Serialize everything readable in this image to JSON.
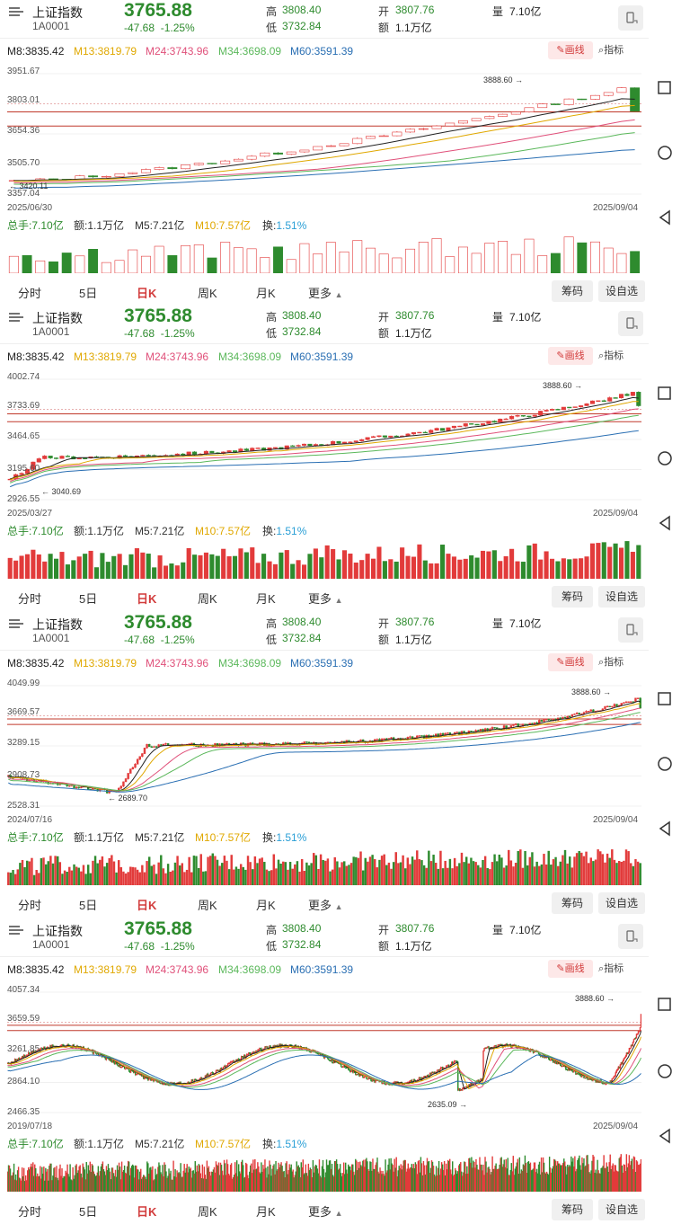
{
  "header": {
    "name": "上证指数",
    "code": "1A0001",
    "price": "3765.88",
    "change": "-47.68",
    "change_pct": "-1.25%",
    "high_label": "高",
    "high": "3808.40",
    "low_label": "低",
    "low": "3732.84",
    "open_label": "开",
    "open": "3807.76",
    "amount_label": "额",
    "amount": "1.1万亿",
    "volume_label": "量",
    "volume": "7.10亿"
  },
  "ma": {
    "m8": "M8:3835.42",
    "m13": "M13:3819.79",
    "m24": "M24:3743.96",
    "m34": "M34:3698.09",
    "m60": "M60:3591.39"
  },
  "tools": {
    "draw": "画线",
    "indicator": "指标"
  },
  "volinfo": {
    "total": "总手:7.10亿",
    "amount": "额:1.1万亿",
    "m5": "M5:7.21亿",
    "m10": "M10:7.57亿",
    "turnover_label": "换:",
    "turnover": "1.51%"
  },
  "tabs": [
    "分时",
    "5日",
    "日K",
    "周K",
    "月K",
    "更多"
  ],
  "buttons": {
    "chips": "筹码",
    "watchlist": "设自选"
  },
  "colors": {
    "up": "#e23b3b",
    "down": "#2e8b2e",
    "m8": "#222222",
    "m13": "#e0a800",
    "m24": "#e0507a",
    "m34": "#5bb85b",
    "m60": "#2a6fb3"
  },
  "panels": [
    {
      "ylabels": [
        "3951.67",
        "3803.01",
        "3654.36",
        "3505.70",
        "3357.04"
      ],
      "start_date": "2025/06/30",
      "end_date": "2025/09/04",
      "high_marker": "3888.60",
      "low_marker": "3420.11",
      "candles": 48,
      "trend": [
        3410,
        3420,
        3430,
        3440,
        3450,
        3455,
        3460,
        3470,
        3480,
        3490,
        3495,
        3500,
        3505,
        3510,
        3515,
        3520,
        3525,
        3530,
        3540,
        3550,
        3560,
        3580,
        3600,
        3620,
        3630,
        3640,
        3650,
        3660,
        3670,
        3680,
        3690,
        3700,
        3710,
        3720,
        3730,
        3740,
        3760,
        3780,
        3800,
        3830,
        3860,
        3880,
        3870,
        3860,
        3880,
        3870,
        3840,
        3770
      ]
    },
    {
      "ylabels": [
        "4002.74",
        "3733.69",
        "3464.65",
        "3195.60",
        "2926.55"
      ],
      "start_date": "2025/03/27",
      "end_date": "2025/09/04",
      "high_marker": "3888.60",
      "low_marker": "3040.69",
      "candles": 110
    },
    {
      "ylabels": [
        "4049.99",
        "3669.57",
        "3289.15",
        "2908.73",
        "2528.31"
      ],
      "start_date": "2024/07/16",
      "end_date": "2025/09/04",
      "high_marker": "3888.60",
      "low_marker": "2689.70",
      "candles": 270
    },
    {
      "ylabels": [
        "4057.34",
        "3659.59",
        "3261.85",
        "2864.10",
        "2466.35"
      ],
      "start_date": "2019/07/18",
      "end_date": "2025/09/04",
      "high_marker": "3888.60",
      "low_marker": "2635.09",
      "candles": 700
    }
  ]
}
